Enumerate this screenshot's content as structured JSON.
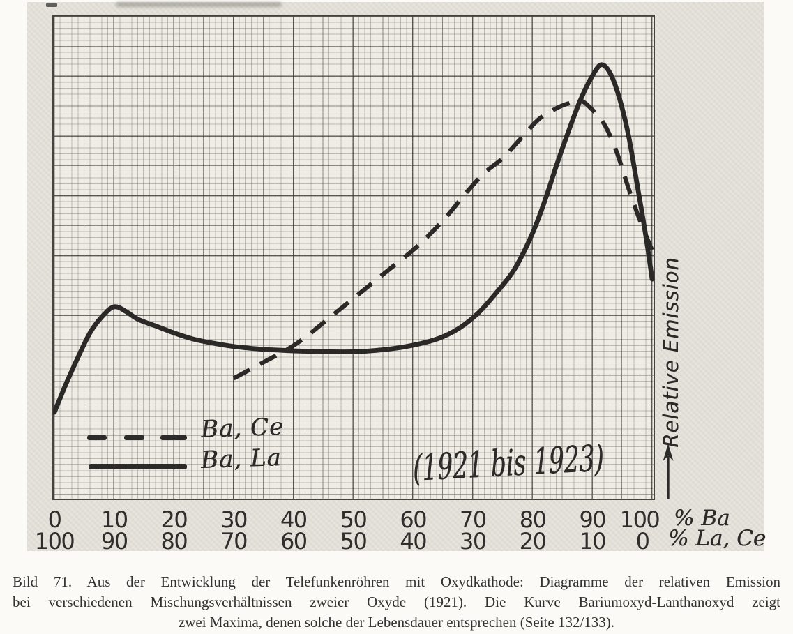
{
  "figure": {
    "annotation": "(1921 bis 1923)",
    "y_axis_label": "Relative Emission",
    "icons": {
      "y_axis_arrow": "up-arrow-icon"
    },
    "legend": [
      {
        "label": "Ba, Ce",
        "style": "dashed"
      },
      {
        "label": "Ba, La",
        "style": "solid"
      }
    ],
    "x_axis": {
      "row1_ticks": [
        "0",
        "10",
        "20",
        "30",
        "40",
        "50",
        "60",
        "70",
        "80",
        "90",
        "100"
      ],
      "row1_unit": "% Ba",
      "row2_ticks": [
        "100",
        "90",
        "80",
        "70",
        "60",
        "50",
        "40",
        "30",
        "20",
        "10",
        "0"
      ],
      "row2_unit": "% La, Ce"
    }
  },
  "caption": {
    "line1": "Bild 71.  Aus der Entwicklung der Telefunkenröhren mit Oxydkathode: Diagramme der relativen Emission",
    "line2": "bei verschiedenen Mischungsverhältnissen zweier Oxyde (1921).  Die Kurve Bariumoxyd-Lanthanoxyd zeigt",
    "line3": "zwei Maxima, denen solche der Lebensdauer entsprechen (Seite 132/133)."
  },
  "chart_data": {
    "type": "line",
    "title": "Relative Emission bei verschiedenen Mischungsverhältnissen zweier Oxyde (1921 bis 1923)",
    "xlabel_top": "% Ba",
    "xlabel_bottom": "% La, Ce",
    "ylabel": "Relative Emission",
    "x_ticks_top": [
      0,
      10,
      20,
      30,
      40,
      50,
      60,
      70,
      80,
      90,
      100
    ],
    "x_ticks_bottom": [
      100,
      90,
      80,
      70,
      60,
      50,
      40,
      30,
      20,
      10,
      0
    ],
    "x_range": [
      0,
      100
    ],
    "y_range": [
      0,
      100
    ],
    "y_note": "relative emission, unlabeled axis, values estimated 0-100 from plot height",
    "grid": "fine graph paper, minor cell = 1 unit, bold line every 10 units",
    "legend_position": "inside lower-left",
    "annotation": "(1921 bis 1923)",
    "series": [
      {
        "name": "Ba, Ce",
        "line_style": "dashed",
        "points": [
          [
            30,
            25
          ],
          [
            33,
            27
          ],
          [
            36,
            29
          ],
          [
            39,
            31
          ],
          [
            42,
            33.5
          ],
          [
            45,
            36.5
          ],
          [
            48,
            39.5
          ],
          [
            51,
            42.5
          ],
          [
            54,
            45.5
          ],
          [
            57,
            48.5
          ],
          [
            60,
            51.5
          ],
          [
            63,
            55
          ],
          [
            66,
            59
          ],
          [
            69,
            63.5
          ],
          [
            72,
            67.5
          ],
          [
            75,
            70.5
          ],
          [
            78,
            74.5
          ],
          [
            81,
            78.5
          ],
          [
            84,
            80.8
          ],
          [
            86,
            81.8
          ],
          [
            88,
            82.4
          ],
          [
            90,
            80.5
          ],
          [
            92,
            77.5
          ],
          [
            94,
            72
          ],
          [
            96,
            64.5
          ],
          [
            98,
            57.5
          ],
          [
            100,
            51.5
          ]
        ]
      },
      {
        "name": "Ba, La",
        "line_style": "solid",
        "points": [
          [
            0,
            18
          ],
          [
            2,
            24
          ],
          [
            4,
            29.5
          ],
          [
            6,
            34.5
          ],
          [
            8,
            37.8
          ],
          [
            10,
            39.8
          ],
          [
            12,
            38.8
          ],
          [
            14,
            37.2
          ],
          [
            17,
            35.8
          ],
          [
            20,
            34.4
          ],
          [
            23,
            33.2
          ],
          [
            26,
            32.4
          ],
          [
            30,
            31.6
          ],
          [
            34,
            31.1
          ],
          [
            38,
            30.8
          ],
          [
            42,
            30.6
          ],
          [
            46,
            30.5
          ],
          [
            50,
            30.5
          ],
          [
            54,
            30.8
          ],
          [
            58,
            31.4
          ],
          [
            62,
            32.4
          ],
          [
            65,
            33.6
          ],
          [
            68,
            35.6
          ],
          [
            71,
            38.6
          ],
          [
            74,
            42.8
          ],
          [
            77,
            47.6
          ],
          [
            80,
            55
          ],
          [
            82,
            61.5
          ],
          [
            84,
            69
          ],
          [
            86,
            76
          ],
          [
            88,
            82.5
          ],
          [
            90,
            87.5
          ],
          [
            91.5,
            89.8
          ],
          [
            93,
            88
          ],
          [
            94.5,
            83
          ],
          [
            96,
            75.5
          ],
          [
            97.5,
            65
          ],
          [
            99,
            54
          ],
          [
            100,
            45.5
          ]
        ]
      }
    ]
  }
}
